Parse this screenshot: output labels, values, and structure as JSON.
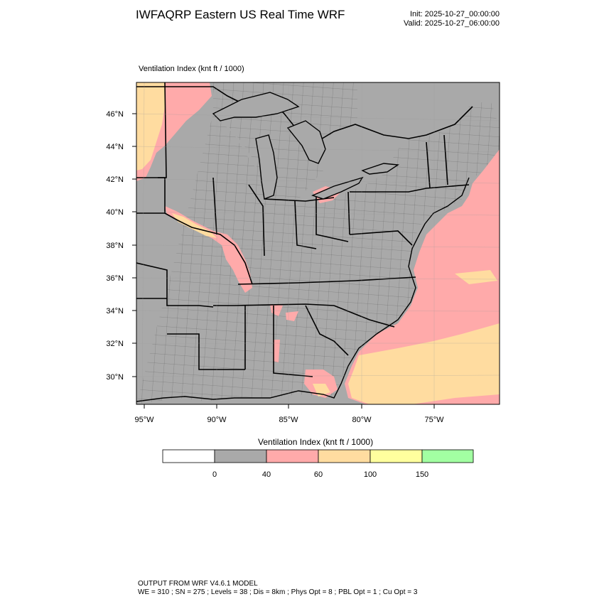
{
  "header": {
    "title": "IWFAQRP Eastern US Real Time WRF",
    "init": "Init: 2025-10-27_00:00:00",
    "valid": "Valid: 2025-10-27_06:00:00"
  },
  "map": {
    "field_label": "Ventilation Index",
    "units": "(knt ft / 1000)",
    "lat_labels": [
      "46°N",
      "44°N",
      "42°N",
      "40°N",
      "38°N",
      "36°N",
      "34°N",
      "32°N",
      "30°N"
    ],
    "lon_labels": [
      "95°W",
      "90°W",
      "85°W",
      "80°W",
      "75°W"
    ],
    "colors": {
      "land_below_40": "#a9a9a9",
      "band_40_60": "#ffaaaa",
      "band_60_100": "#ffdca0"
    }
  },
  "colorbar": {
    "title": "Ventilation Index  (knt ft / 1000)",
    "tick_labels": [
      "0",
      "40",
      "60",
      "100",
      "150"
    ],
    "segment_colors": [
      "#ffffff",
      "#a9a9a9",
      "#ffaaaa",
      "#ffdca0",
      "#ffff9e",
      "#a2ffa2"
    ]
  },
  "footer": {
    "line1": "OUTPUT FROM WRF V4.6.1 MODEL",
    "line2": "WE = 310 ; SN = 275 ; Levels = 38 ; Dis = 8km ; Phys Opt = 8 ; PBL Opt = 1 ; Cu Opt = 3"
  }
}
